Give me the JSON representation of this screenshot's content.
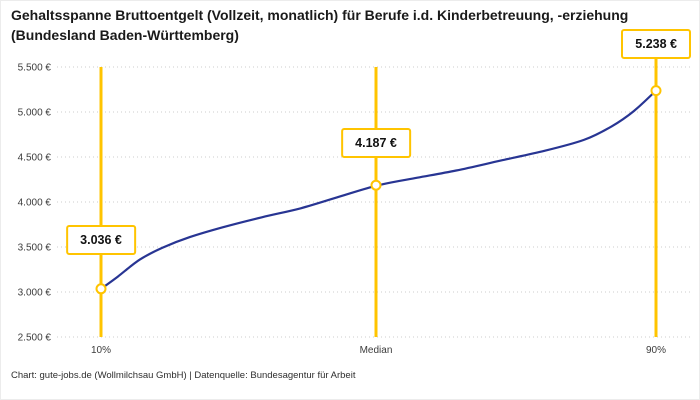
{
  "title": "Gehaltsspanne Bruttoentgelt (Vollzeit, monatlich) für Berufe i.d. Kinderbetreuung, -erziehung (Bundesland Baden-Württemberg)",
  "footer": "Chart: gute-jobs.de (Wollmilchsau GmbH) | Datenquelle: Bundesagentur für Arbeit",
  "chart_data": {
    "type": "line",
    "title": "Gehaltsspanne Bruttoentgelt (Vollzeit, monatlich) für Berufe i.d. Kinderbetreuung, -erziehung (Bundesland Baden-Württemberg)",
    "categories": [
      "10%",
      "Median",
      "90%"
    ],
    "points": [
      {
        "category": "10%",
        "value": 3036,
        "label": "3.036 €"
      },
      {
        "category": "Median",
        "value": 4187,
        "label": "4.187 €"
      },
      {
        "category": "90%",
        "value": 5238,
        "label": "5.238 €"
      }
    ],
    "curve_estimate": [
      [
        0,
        3036
      ],
      [
        0.03,
        3170
      ],
      [
        0.07,
        3360
      ],
      [
        0.11,
        3490
      ],
      [
        0.16,
        3610
      ],
      [
        0.22,
        3720
      ],
      [
        0.29,
        3830
      ],
      [
        0.36,
        3930
      ],
      [
        0.43,
        4060
      ],
      [
        0.5,
        4187
      ],
      [
        0.57,
        4270
      ],
      [
        0.64,
        4350
      ],
      [
        0.72,
        4460
      ],
      [
        0.8,
        4570
      ],
      [
        0.87,
        4690
      ],
      [
        0.92,
        4840
      ],
      [
        0.96,
        5010
      ],
      [
        1,
        5238
      ]
    ],
    "ylim": [
      2500,
      5500
    ],
    "ytick_values": [
      2500,
      3000,
      3500,
      4000,
      4500,
      5000,
      5500
    ],
    "ytick_labels": [
      "2.500 €",
      "3.000 €",
      "3.500 €",
      "4.000 €",
      "4.500 €",
      "5.000 €",
      "5.500 €"
    ],
    "xlabel": "",
    "ylabel": "",
    "grid": "dotted-horizontal",
    "legend": "none",
    "line_color": "#283593",
    "accent_color": "#FFC400"
  }
}
